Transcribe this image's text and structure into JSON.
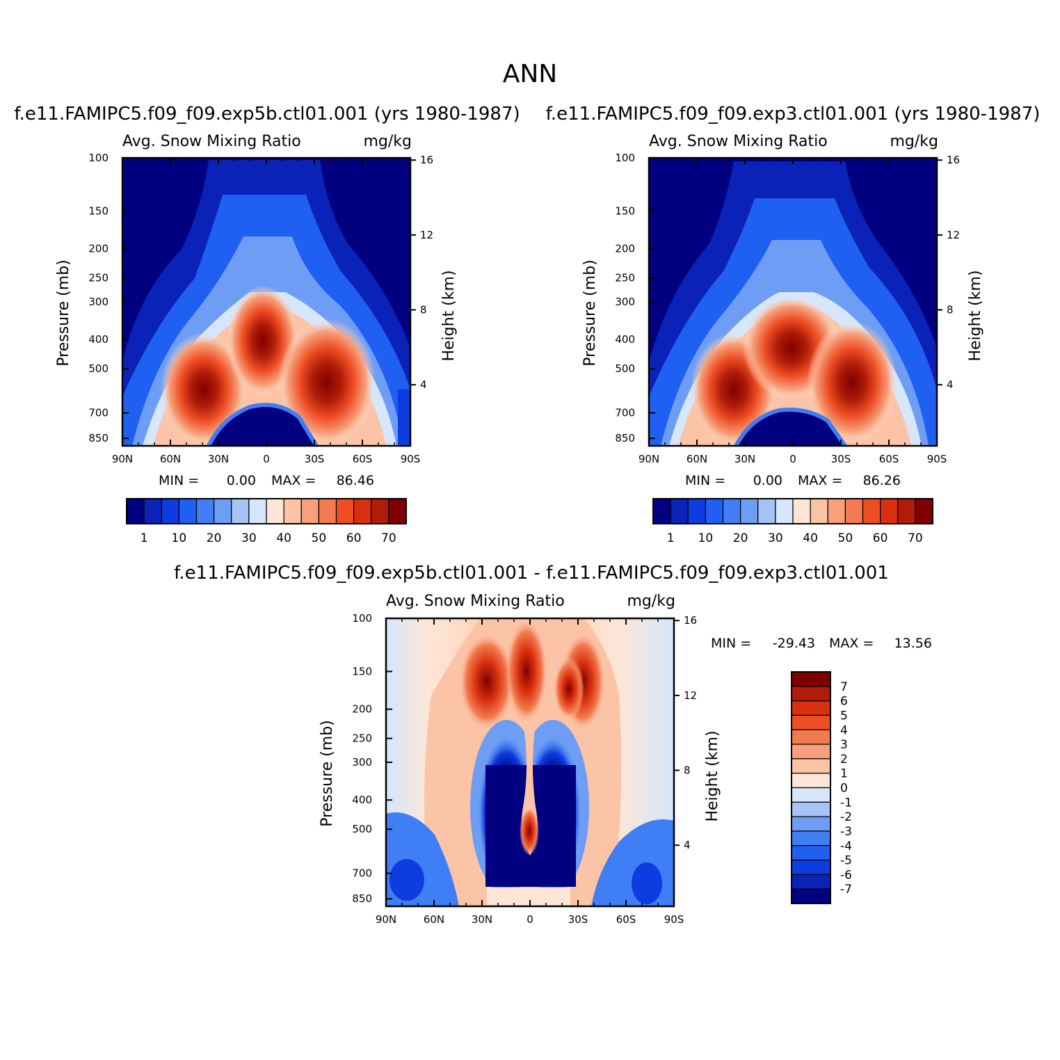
{
  "figure_title": "ANN",
  "panels": [
    {
      "case_title": "f.e11.FAMIPC5.f09_f09.exp5b.ctl01.001 (yrs 1980-1987)",
      "left_header": "Avg. Snow Mixing Ratio",
      "right_header": "mg/kg",
      "stats_min_label": "MIN =",
      "stats_min": "0.00",
      "stats_max_label": "MAX =",
      "stats_max": "86.46"
    },
    {
      "case_title": "f.e11.FAMIPC5.f09_f09.exp3.ctl01.001 (yrs 1980-1987)",
      "left_header": "Avg. Snow Mixing Ratio",
      "right_header": "mg/kg",
      "stats_min_label": "MIN =",
      "stats_min": "0.00",
      "stats_max_label": "MAX =",
      "stats_max": "86.26"
    },
    {
      "case_title": "f.e11.FAMIPC5.f09_f09.exp5b.ctl01.001 - f.e11.FAMIPC5.f09_f09.exp3.ctl01.001",
      "left_header": "Avg. Snow Mixing Ratio",
      "right_header": "mg/kg",
      "stats_min_label": "MIN =",
      "stats_min": "-29.43",
      "stats_max_label": "MAX =",
      "stats_max": "13.56"
    }
  ],
  "chart_data": [
    {
      "type": "heatmap",
      "title": "f.e11.FAMIPC5.f09_f09.exp5b.ctl01.001 (yrs 1980-1987)",
      "subtitle": "Avg. Snow Mixing Ratio (mg/kg)",
      "xlabel": "",
      "ylabel": "Pressure (mb)",
      "y2label": "Height (km)",
      "x_ticks": [
        "90N",
        "60N",
        "30N",
        "0",
        "30S",
        "60S",
        "90S"
      ],
      "y_ticks": [
        "100",
        "150",
        "200",
        "250",
        "300",
        "400",
        "500",
        "700",
        "850"
      ],
      "y_tick_values": [
        100,
        150,
        200,
        250,
        300,
        400,
        500,
        700,
        850
      ],
      "y2_ticks": [
        "16",
        "12",
        "8",
        "4"
      ],
      "y2_tick_values": [
        16,
        12,
        8,
        4
      ],
      "ylim": [
        1000,
        100
      ],
      "min": 0.0,
      "max": 86.46,
      "colorbar_levels": [
        "1",
        "10",
        "20",
        "30",
        "40",
        "50",
        "60",
        "70"
      ],
      "colorbar_colors": [
        "#000080",
        "#0a22b8",
        "#0d3de0",
        "#1f5ff2",
        "#3f7ef5",
        "#6e9df5",
        "#a5c3f7",
        "#d6e6fb",
        "#fde6d6",
        "#fbc4a6",
        "#f7a07b",
        "#f37a4f",
        "#ee4e24",
        "#d8300e",
        "#b01c08",
        "#800000"
      ],
      "features": [
        {
          "name": "tropical-upper-max",
          "lat": 0,
          "p_mb": 370,
          "value": 80
        },
        {
          "name": "nh-midlat-max",
          "lat": 35,
          "p_mb": 600,
          "value": 85
        },
        {
          "name": "sh-midlat-max",
          "lat": -38,
          "p_mb": 570,
          "value": 86.46
        },
        {
          "name": "low-level-minimum",
          "lat": 0,
          "p_mb": 900,
          "value": 0
        }
      ]
    },
    {
      "type": "heatmap",
      "title": "f.e11.FAMIPC5.f09_f09.exp3.ctl01.001 (yrs 1980-1987)",
      "subtitle": "Avg. Snow Mixing Ratio (mg/kg)",
      "xlabel": "",
      "ylabel": "Pressure (mb)",
      "y2label": "Height (km)",
      "x_ticks": [
        "90N",
        "60N",
        "30N",
        "0",
        "30S",
        "60S",
        "90S"
      ],
      "y_ticks": [
        "100",
        "150",
        "200",
        "250",
        "300",
        "400",
        "500",
        "700",
        "850"
      ],
      "y_tick_values": [
        100,
        150,
        200,
        250,
        300,
        400,
        500,
        700,
        850
      ],
      "y2_ticks": [
        "16",
        "12",
        "8",
        "4"
      ],
      "y2_tick_values": [
        16,
        12,
        8,
        4
      ],
      "ylim": [
        1000,
        100
      ],
      "min": 0.0,
      "max": 86.26,
      "colorbar_levels": [
        "1",
        "10",
        "20",
        "30",
        "40",
        "50",
        "60",
        "70"
      ],
      "colorbar_colors": [
        "#000080",
        "#0a22b8",
        "#0d3de0",
        "#1f5ff2",
        "#3f7ef5",
        "#6e9df5",
        "#a5c3f7",
        "#d6e6fb",
        "#fde6d6",
        "#fbc4a6",
        "#f7a07b",
        "#f37a4f",
        "#ee4e24",
        "#d8300e",
        "#b01c08",
        "#800000"
      ],
      "features": [
        {
          "name": "tropical-upper-max",
          "lat": 0,
          "p_mb": 420,
          "value": 78
        },
        {
          "name": "nh-midlat-max",
          "lat": 35,
          "p_mb": 600,
          "value": 84
        },
        {
          "name": "sh-midlat-max",
          "lat": -35,
          "p_mb": 560,
          "value": 86.26
        },
        {
          "name": "low-level-minimum",
          "lat": 0,
          "p_mb": 900,
          "value": 0
        }
      ]
    },
    {
      "type": "heatmap",
      "title": "f.e11.FAMIPC5.f09_f09.exp5b.ctl01.001 - f.e11.FAMIPC5.f09_f09.exp3.ctl01.001",
      "subtitle": "Avg. Snow Mixing Ratio (mg/kg)",
      "xlabel": "",
      "ylabel": "Pressure (mb)",
      "y2label": "Height (km)",
      "x_ticks": [
        "90N",
        "60N",
        "30N",
        "0",
        "30S",
        "60S",
        "90S"
      ],
      "y_ticks": [
        "100",
        "150",
        "200",
        "250",
        "300",
        "400",
        "500",
        "700",
        "850"
      ],
      "y_tick_values": [
        100,
        150,
        200,
        250,
        300,
        400,
        500,
        700,
        850
      ],
      "y2_ticks": [
        "16",
        "12",
        "8",
        "4"
      ],
      "y2_tick_values": [
        16,
        12,
        8,
        4
      ],
      "ylim": [
        1000,
        100
      ],
      "min": -29.43,
      "max": 13.56,
      "colorbar_levels": [
        "7",
        "6",
        "5",
        "4",
        "3",
        "2",
        "1",
        "0",
        "-1",
        "-2",
        "-3",
        "-4",
        "-5",
        "-6",
        "-7"
      ],
      "colorbar_colors": [
        "#800000",
        "#b01c08",
        "#d8300e",
        "#ee4e24",
        "#f37a4f",
        "#f7a07b",
        "#fbc4a6",
        "#fde6d6",
        "#d6e6fb",
        "#a5c3f7",
        "#6e9df5",
        "#3f7ef5",
        "#1f5ff2",
        "#0d3de0",
        "#0a22b8",
        "#000080"
      ],
      "features": [
        {
          "name": "equatorial-upper-positive",
          "lat": 0,
          "p_mb": 150,
          "value": 8
        },
        {
          "name": "equatorial-midlevel-positive",
          "lat": 0,
          "p_mb": 520,
          "value": 13.56
        },
        {
          "name": "nh-tropical-negative",
          "lat": 15,
          "p_mb": 450,
          "value": -29.43
        },
        {
          "name": "sh-tropical-negative",
          "lat": -15,
          "p_mb": 450,
          "value": -25
        }
      ]
    }
  ]
}
